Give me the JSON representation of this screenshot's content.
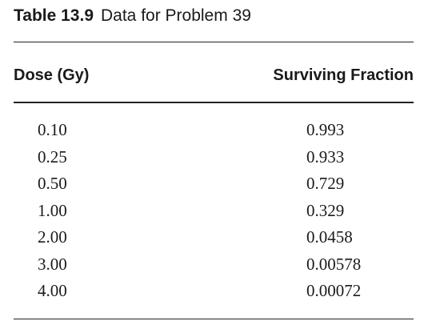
{
  "table": {
    "caption_label": "Table 13.9",
    "caption_title": "Data for Problem 39",
    "headers": {
      "dose": "Dose (Gy)",
      "fraction": "Surviving Fraction"
    },
    "rows": [
      {
        "dose": "0.10",
        "fraction": "0.993"
      },
      {
        "dose": "0.25",
        "fraction": "0.933"
      },
      {
        "dose": "0.50",
        "fraction": "0.729"
      },
      {
        "dose": "1.00",
        "fraction": "0.329"
      },
      {
        "dose": "2.00",
        "fraction": "0.0458"
      },
      {
        "dose": "3.00",
        "fraction": "0.00578"
      },
      {
        "dose": "4.00",
        "fraction": "0.00072"
      }
    ]
  }
}
